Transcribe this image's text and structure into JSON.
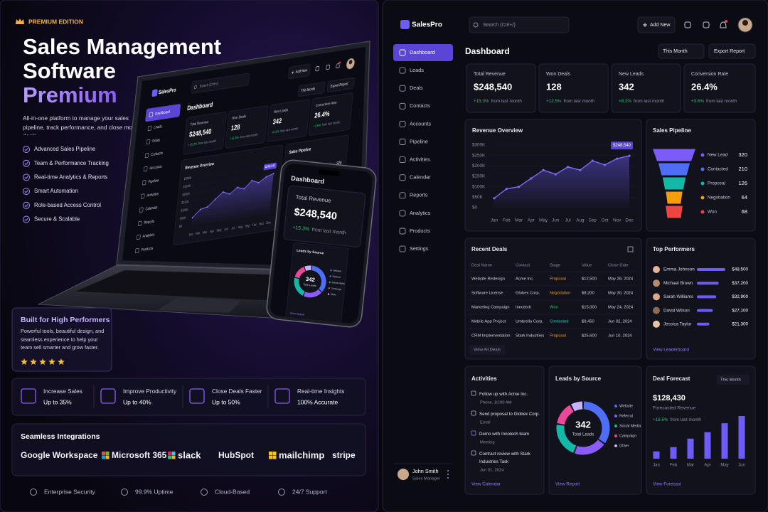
{
  "promo": {
    "badge": "PREMIUM EDITION",
    "title": [
      "Sales Management",
      "Software",
      "Premium"
    ],
    "description": "All-in-one platform to manage your sales pipeline, track performance, and close more deals.",
    "features": [
      "Advanced Sales Pipeline",
      "Team & Performance Tracking",
      "Real-time Analytics & Reports",
      "Smart Automation",
      "Role-based Access Control",
      "Secure & Scalable"
    ],
    "callout": {
      "title": "Built for High Performers",
      "text": "Powerful tools, beautiful design, and seamless experience to help your team sell smarter and grow faster.",
      "stars": 5
    },
    "stats": [
      {
        "label": "Increase Sales",
        "value": "Up to 35%"
      },
      {
        "label": "Improve Productivity",
        "value": "Up to 40%"
      },
      {
        "label": "Close Deals Faster",
        "value": "Up to 50%"
      },
      {
        "label": "Real-time Insights",
        "value": "100% Accurate"
      }
    ],
    "integrations": {
      "title": "Seamless Integrations",
      "logos": [
        "Google Workspace",
        "Microsoft 365",
        "slack",
        "HubSpot",
        "mailchimp",
        "stripe"
      ]
    },
    "footer": [
      "Enterprise Security",
      "99.9% Uptime",
      "Cloud-Based",
      "24/7 Support"
    ]
  },
  "app": {
    "brand": "SalesPro",
    "search": "Search (Ctrl+/)",
    "add_button": "Add New",
    "nav": [
      "Dashboard",
      "Leads",
      "Deals",
      "Contacts",
      "Accounts",
      "Pipeline",
      "Activities",
      "Calendar",
      "Reports",
      "Analytics",
      "Products",
      "Settings"
    ],
    "user": {
      "name": "John Smith",
      "role": "Sales Manager"
    },
    "page_title": "Dashboard",
    "period": "This Month",
    "export": "Export Report",
    "kpis": [
      {
        "label": "Total Revenue",
        "value": "$248,540",
        "change": "+15.3%",
        "note": "from last month"
      },
      {
        "label": "Won Deals",
        "value": "128",
        "change": "+12.5%",
        "note": "from last month"
      },
      {
        "label": "New Leads",
        "value": "342",
        "change": "+8.2%",
        "note": "from last month"
      },
      {
        "label": "Conversion Rate",
        "value": "26.4%",
        "change": "+3.6%",
        "note": "from last month"
      }
    ],
    "recent_deals": {
      "title": "Recent Deals",
      "columns": [
        "Deal Name",
        "Contact",
        "Stage",
        "Value",
        "Close Date"
      ],
      "rows": [
        [
          "Website Redesign",
          "Acme Inc.",
          "Proposal",
          "$12,500",
          "May 28, 2024"
        ],
        [
          "Software License",
          "Globex Corp.",
          "Negotiation",
          "$8,200",
          "May 30, 2024"
        ],
        [
          "Marketing Campaign",
          "Innotech",
          "Won",
          "$15,000",
          "May 24, 2024"
        ],
        [
          "Mobile App Project",
          "Umbrella Corp.",
          "Contacted",
          "$9,450",
          "Jun 02, 2024"
        ],
        [
          "CRM Implementation",
          "Stark Industries",
          "Proposal",
          "$25,600",
          "Jun 10, 2024"
        ]
      ],
      "stage_colors": {
        "Proposal": "#f59e0b",
        "Negotiation": "#f59e0b",
        "Won": "#22c55e",
        "Contacted": "#2dd4bf"
      },
      "link": "View All Deals"
    },
    "top_performers": {
      "title": "Top Performers",
      "names": [
        "Emma Johnson",
        "Michael Brown",
        "Sarah Williams",
        "David Wilson",
        "Jessica Taylor"
      ],
      "values": [
        48500,
        37200,
        32900,
        27100,
        21300
      ],
      "value_labels": [
        "$48,500",
        "$37,200",
        "$32,900",
        "$27,100",
        "$21,300"
      ],
      "color": "#6d5cf6",
      "link": "View Leaderboard"
    },
    "activities": {
      "title": "Activities",
      "items": [
        {
          "text": "Follow up with Acme Inc.",
          "meta": "Phone, 10:00 AM"
        },
        {
          "text": "Send proposal to Globex Corp.",
          "meta": "Email"
        },
        {
          "text": "Demo with Innotech team",
          "meta": "Meeting"
        },
        {
          "text": "Contract review with Stark Industries Task",
          "meta": "Jun 01, 2024"
        }
      ],
      "link": "View Calendar"
    }
  },
  "chart_data": [
    {
      "type": "line",
      "title": "Revenue Overview",
      "categories": [
        "Jan",
        "Feb",
        "Mar",
        "Apr",
        "May",
        "Jun",
        "Jul",
        "Aug",
        "Sep",
        "Oct",
        "Nov",
        "Dec"
      ],
      "values": [
        45000,
        90000,
        100000,
        140000,
        180000,
        160000,
        195000,
        180000,
        225000,
        205000,
        235000,
        248540
      ],
      "value_labels": [
        null,
        null,
        null,
        null,
        null,
        null,
        null,
        null,
        null,
        null,
        null,
        "$248,540"
      ],
      "color": "#7c6cf6",
      "ylim": [
        0,
        300000
      ],
      "yticks": [
        {
          "value": 0,
          "label": "$0"
        },
        {
          "value": 50000,
          "label": "$50K"
        },
        {
          "value": 100000,
          "label": "$100K"
        },
        {
          "value": 150000,
          "label": "$150K"
        },
        {
          "value": 200000,
          "label": "$200K"
        },
        {
          "value": 250000,
          "label": "$250K"
        },
        {
          "value": 300000,
          "label": "$300K"
        }
      ],
      "grid": true
    },
    {
      "type": "funnel",
      "title": "Sales Pipeline",
      "categories": [
        "New Lead",
        "Contacted",
        "Proposal",
        "Negotiation",
        "Won"
      ],
      "values": [
        320,
        210,
        126,
        64,
        68
      ],
      "colors": [
        "#7c5cf6",
        "#4f6ef7",
        "#14b8a6",
        "#f59e0b",
        "#ef4444"
      ]
    },
    {
      "type": "donut",
      "title": "Leads by Source",
      "total": 342,
      "center_label": "Total Leads",
      "categories": [
        "Website",
        "Referral",
        "Social Media",
        "Campaign",
        "Other"
      ],
      "values": [
        120,
        70,
        75,
        50,
        27
      ],
      "colors": [
        "#4f6ef7",
        "#8b5cf6",
        "#14b8a6",
        "#ec4899",
        "#c4b5fd"
      ],
      "link": "View Report"
    },
    {
      "type": "bar",
      "title": "Deal Forecast",
      "period": "This Month",
      "value": "$128,430",
      "subtitle": "Forecasted Revenue",
      "change": "+18.6%",
      "change_note": "from last month",
      "categories": [
        "Jan",
        "Feb",
        "Mar",
        "Apr",
        "May",
        "Jun"
      ],
      "values": [
        17000,
        27000,
        47000,
        62000,
        83000,
        100000
      ],
      "ylim": [
        0,
        100000
      ],
      "color": "#6d5cf6",
      "link": "View Forecast"
    }
  ]
}
